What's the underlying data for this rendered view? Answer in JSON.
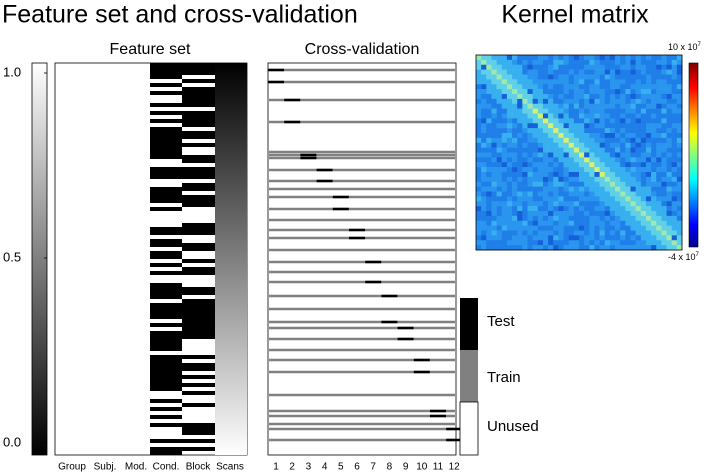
{
  "title_left": "Feature set and cross-validation",
  "title_right": "Kernel matrix",
  "feature_set": {
    "title": "Feature set",
    "columns": [
      "Group",
      "Subj.",
      "Mod.",
      "Cond.",
      "Block",
      "Scans"
    ],
    "colorbar_ticks": [
      {
        "value": 1,
        "label": "1.0"
      },
      {
        "value": 0.5,
        "label": "0.5"
      },
      {
        "value": 0,
        "label": "0.0"
      }
    ],
    "colorbar_lim": [
      0,
      1
    ]
  },
  "cross_validation": {
    "title": "Cross-validation",
    "folds": [
      "1",
      "2",
      "3",
      "4",
      "5",
      "6",
      "7",
      "8",
      "9",
      "10",
      "11",
      "12"
    ],
    "legend": [
      "Test",
      "Train",
      "Unused"
    ]
  },
  "kernel": {
    "colorbar_top": {
      "base": "10 x 10",
      "exp": "7"
    },
    "colorbar_bottom": {
      "base": "-4 x 10",
      "exp": "7"
    }
  }
}
